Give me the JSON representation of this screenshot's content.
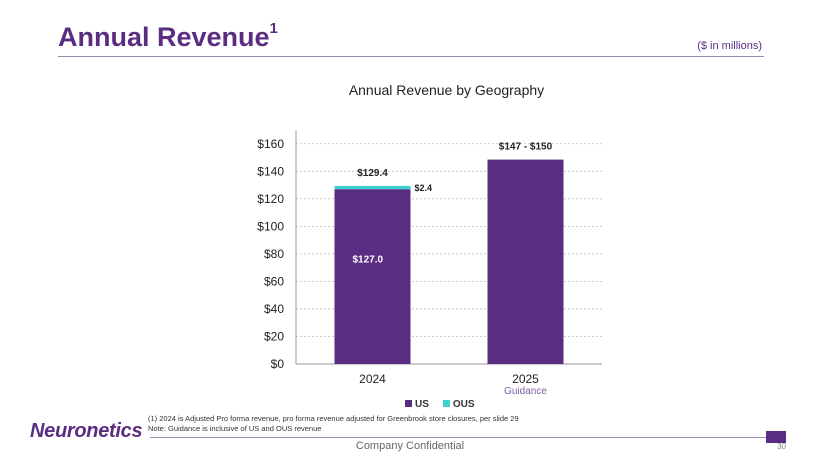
{
  "slide": {
    "title": "Annual Revenue",
    "title_footnote_mark": "1",
    "units": "($ in millions)",
    "footnotes": [
      "(1)   2024 is Adjusted Pro forma revenue, pro forma revenue adjusted for Greenbrook store closures, per slide 29",
      "Note: Guidance is inclusive of US and OUS revenue"
    ],
    "logo": "Neuronetics",
    "footer": "Company Confidential",
    "page_number": "30"
  },
  "chart_data": {
    "type": "bar",
    "stacked": true,
    "title": "Annual Revenue by Geography",
    "categories": [
      "2024",
      "2025"
    ],
    "category_sublabels": [
      "",
      "Guidance"
    ],
    "series": [
      {
        "name": "US",
        "values": [
          127.0,
          148.5
        ],
        "color": "#5a2d82",
        "data_labels": [
          "$127.0",
          ""
        ]
      },
      {
        "name": "OUS",
        "values": [
          2.4,
          0
        ],
        "color": "#3ecfcf",
        "data_labels": [
          "$2.4",
          ""
        ]
      }
    ],
    "totals_labels": [
      "$129.4",
      "$147 - $150"
    ],
    "ylim": [
      0,
      170
    ],
    "yticks": [
      0,
      20,
      40,
      60,
      80,
      100,
      120,
      140,
      160
    ],
    "ytick_labels": [
      "$0",
      "$20",
      "$40",
      "$60",
      "$80",
      "$100",
      "$120",
      "$140",
      "$160"
    ],
    "grid": true,
    "legend": "bottom-center",
    "colors": {
      "us": "#5a2d82",
      "ous": "#3ecfcf",
      "guidance": "#7b5ea7",
      "grid": "#bfbfbf"
    }
  }
}
